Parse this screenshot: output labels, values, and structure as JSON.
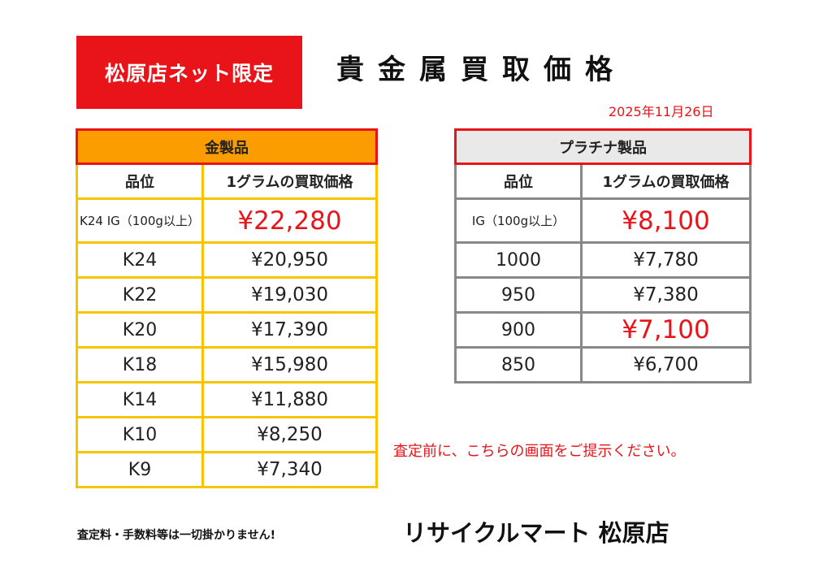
{
  "badge": "松原店ネット限定",
  "title": "貴金属買取価格",
  "date": "2025年11月26日",
  "gold": {
    "header": "金製品",
    "col_grade": "品位",
    "col_price": "1グラムの買取価格",
    "rows": [
      {
        "grade": "K24 IG（100g以上）",
        "price": "¥22,280"
      },
      {
        "grade": "K24",
        "price": "¥20,950"
      },
      {
        "grade": "K22",
        "price": "¥19,030"
      },
      {
        "grade": "K20",
        "price": "¥17,390"
      },
      {
        "grade": "K18",
        "price": "¥15,980"
      },
      {
        "grade": "K14",
        "price": "¥11,880"
      },
      {
        "grade": "K10",
        "price": "¥8,250"
      },
      {
        "grade": "K9",
        "price": "¥7,340"
      }
    ]
  },
  "platinum": {
    "header": "プラチナ製品",
    "col_grade": "品位",
    "col_price": "1グラムの買取価格",
    "rows": [
      {
        "grade": "IG（100g以上）",
        "price": "¥8,100"
      },
      {
        "grade": "1000",
        "price": "¥7,780"
      },
      {
        "grade": "950",
        "price": "¥7,380"
      },
      {
        "grade": "900",
        "price": "¥7,100"
      },
      {
        "grade": "850",
        "price": "¥6,700"
      }
    ]
  },
  "notice": "査定前に、こちらの画面をご提示ください。",
  "fee_note": "査定料・手数料等は一切掛かりません!",
  "store_name": "リサイクルマート 松原店",
  "colors": {
    "accent_red": "#e8141a",
    "gold_header": "#fb9c00",
    "gold_border": "#f6c400",
    "plat_header": "#e9e9e9",
    "plat_border": "#888888"
  }
}
